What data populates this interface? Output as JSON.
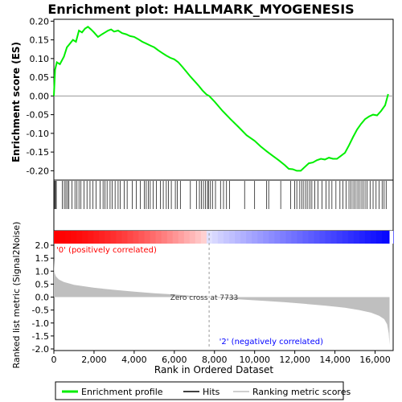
{
  "chart_data": [
    {
      "panel": "enrichment",
      "type": "line",
      "title": "Enrichment plot: HALLMARK_MYOGENESIS",
      "ylabel": "Enrichment score (ES)",
      "ylim": [
        -0.225,
        0.205
      ],
      "yticks": [
        "0.20",
        "0.15",
        "0.10",
        "0.05",
        "0.00",
        "-0.05",
        "-0.10",
        "-0.15",
        "-0.20"
      ],
      "ytick_values": [
        0.2,
        0.15,
        0.1,
        0.05,
        0.0,
        -0.05,
        -0.1,
        -0.15,
        -0.2
      ],
      "series": [
        {
          "name": "Enrichment profile",
          "color": "#00ee00",
          "x": [
            0,
            60,
            150,
            300,
            500,
            650,
            800,
            950,
            1100,
            1250,
            1400,
            1550,
            1700,
            1850,
            2000,
            2200,
            2400,
            2550,
            2700,
            2850,
            3000,
            3200,
            3400,
            3600,
            3800,
            4000,
            4200,
            4400,
            4600,
            4800,
            5000,
            5200,
            5400,
            5600,
            5800,
            6000,
            6200,
            6400,
            6600,
            6800,
            7000,
            7200,
            7400,
            7600,
            7733,
            8000,
            8400,
            8800,
            9200,
            9600,
            10000,
            10300,
            10600,
            10900,
            11200,
            11500,
            11700,
            11900,
            12100,
            12300,
            12500,
            12700,
            12900,
            13100,
            13300,
            13500,
            13700,
            13900,
            14100,
            14300,
            14500,
            14700,
            14900,
            15100,
            15300,
            15500,
            15700,
            15900,
            16100,
            16300,
            16500,
            16650
          ],
          "y": [
            0.0,
            0.07,
            0.09,
            0.085,
            0.105,
            0.13,
            0.14,
            0.15,
            0.145,
            0.175,
            0.17,
            0.18,
            0.185,
            0.178,
            0.17,
            0.158,
            0.165,
            0.17,
            0.175,
            0.178,
            0.172,
            0.175,
            0.168,
            0.165,
            0.16,
            0.158,
            0.152,
            0.145,
            0.14,
            0.135,
            0.13,
            0.122,
            0.115,
            0.108,
            0.102,
            0.098,
            0.09,
            0.078,
            0.065,
            0.052,
            0.04,
            0.028,
            0.015,
            0.004,
            0.0,
            -0.015,
            -0.04,
            -0.062,
            -0.083,
            -0.105,
            -0.12,
            -0.135,
            -0.148,
            -0.16,
            -0.172,
            -0.185,
            -0.195,
            -0.196,
            -0.2,
            -0.2,
            -0.19,
            -0.18,
            -0.178,
            -0.172,
            -0.168,
            -0.17,
            -0.165,
            -0.168,
            -0.168,
            -0.16,
            -0.152,
            -0.132,
            -0.11,
            -0.09,
            -0.075,
            -0.062,
            -0.055,
            -0.05,
            -0.052,
            -0.04,
            -0.025,
            0.005
          ]
        }
      ],
      "hits": [
        40,
        80,
        120,
        420,
        520,
        600,
        680,
        750,
        900,
        1050,
        1150,
        1250,
        1350,
        1500,
        1650,
        1800,
        1950,
        2100,
        2300,
        2450,
        2550,
        2650,
        2800,
        2900,
        3050,
        3200,
        3300,
        3500,
        3650,
        3900,
        4100,
        4300,
        4500,
        4600,
        4700,
        4800,
        4950,
        5100,
        5300,
        5450,
        5600,
        5700,
        5850,
        6050,
        6150,
        6300,
        6800,
        7100,
        7250,
        7350,
        7450,
        7550,
        7650,
        7700,
        7800,
        7900,
        8050,
        8300,
        8450,
        8600,
        8750,
        9500,
        10000,
        10600,
        10700,
        11300,
        11800,
        12000,
        12100,
        12250,
        12350,
        12450,
        12550,
        12650,
        12750,
        12850,
        13000,
        13150,
        13350,
        13550,
        13700,
        13850,
        14050,
        14250,
        14400,
        14550,
        14700,
        14800,
        14900,
        15000,
        15100,
        15200,
        15300,
        15400,
        15500,
        15600,
        15750,
        15900,
        16050,
        16200,
        16350,
        16450,
        16550
      ]
    },
    {
      "panel": "ranked-metric",
      "type": "area",
      "ylabel": "Ranked list metric (Signal2Noise)",
      "xlabel": "Rank in Ordered Dataset",
      "ylim": [
        -2.0,
        2.0
      ],
      "xlim": [
        0,
        16900
      ],
      "yticks": [
        "2.0",
        "1.5",
        "1.0",
        "0.5",
        "0.0",
        "-0.5",
        "-1.0",
        "-1.5",
        "-2.0"
      ],
      "ytick_values": [
        2.0,
        1.5,
        1.0,
        0.5,
        0.0,
        -0.5,
        -1.0,
        -1.5,
        -2.0
      ],
      "xticks": [
        "0",
        "2,000",
        "4,000",
        "6,000",
        "8,000",
        "10,000",
        "12,000",
        "14,000",
        "16,000"
      ],
      "xtick_values": [
        0,
        2000,
        4000,
        6000,
        8000,
        10000,
        12000,
        14000,
        16000
      ],
      "x": [
        0,
        30,
        100,
        250,
        500,
        1000,
        2000,
        3000,
        4000,
        5000,
        6000,
        7000,
        7733,
        8500,
        9500,
        10500,
        11500,
        12500,
        13500,
        14500,
        15200,
        15800,
        16200,
        16450,
        16600,
        16680,
        16720
      ],
      "values": [
        1.45,
        0.95,
        0.8,
        0.68,
        0.58,
        0.47,
        0.36,
        0.28,
        0.21,
        0.15,
        0.1,
        0.04,
        0.0,
        -0.05,
        -0.1,
        -0.15,
        -0.2,
        -0.26,
        -0.33,
        -0.41,
        -0.5,
        -0.6,
        -0.72,
        -0.85,
        -1.05,
        -1.4,
        -1.85
      ],
      "annotations": {
        "zero_cross": "Zero cross at 7733",
        "zero_cross_x": 7733,
        "positive_label": "'0' (positively correlated)",
        "negative_label": "'2' (negatively correlated)"
      }
    }
  ],
  "legend": {
    "entries": [
      {
        "label": "Enrichment profile",
        "color": "#00ee00"
      },
      {
        "label": "Hits",
        "color": "#000000"
      },
      {
        "label": "Ranking metric scores",
        "color": "#bfbfbf"
      }
    ]
  },
  "colors": {
    "positive": "#ff0000",
    "negative": "#0000ff",
    "metric_fill": "#bfbfbf",
    "zero_line": "#999999"
  }
}
